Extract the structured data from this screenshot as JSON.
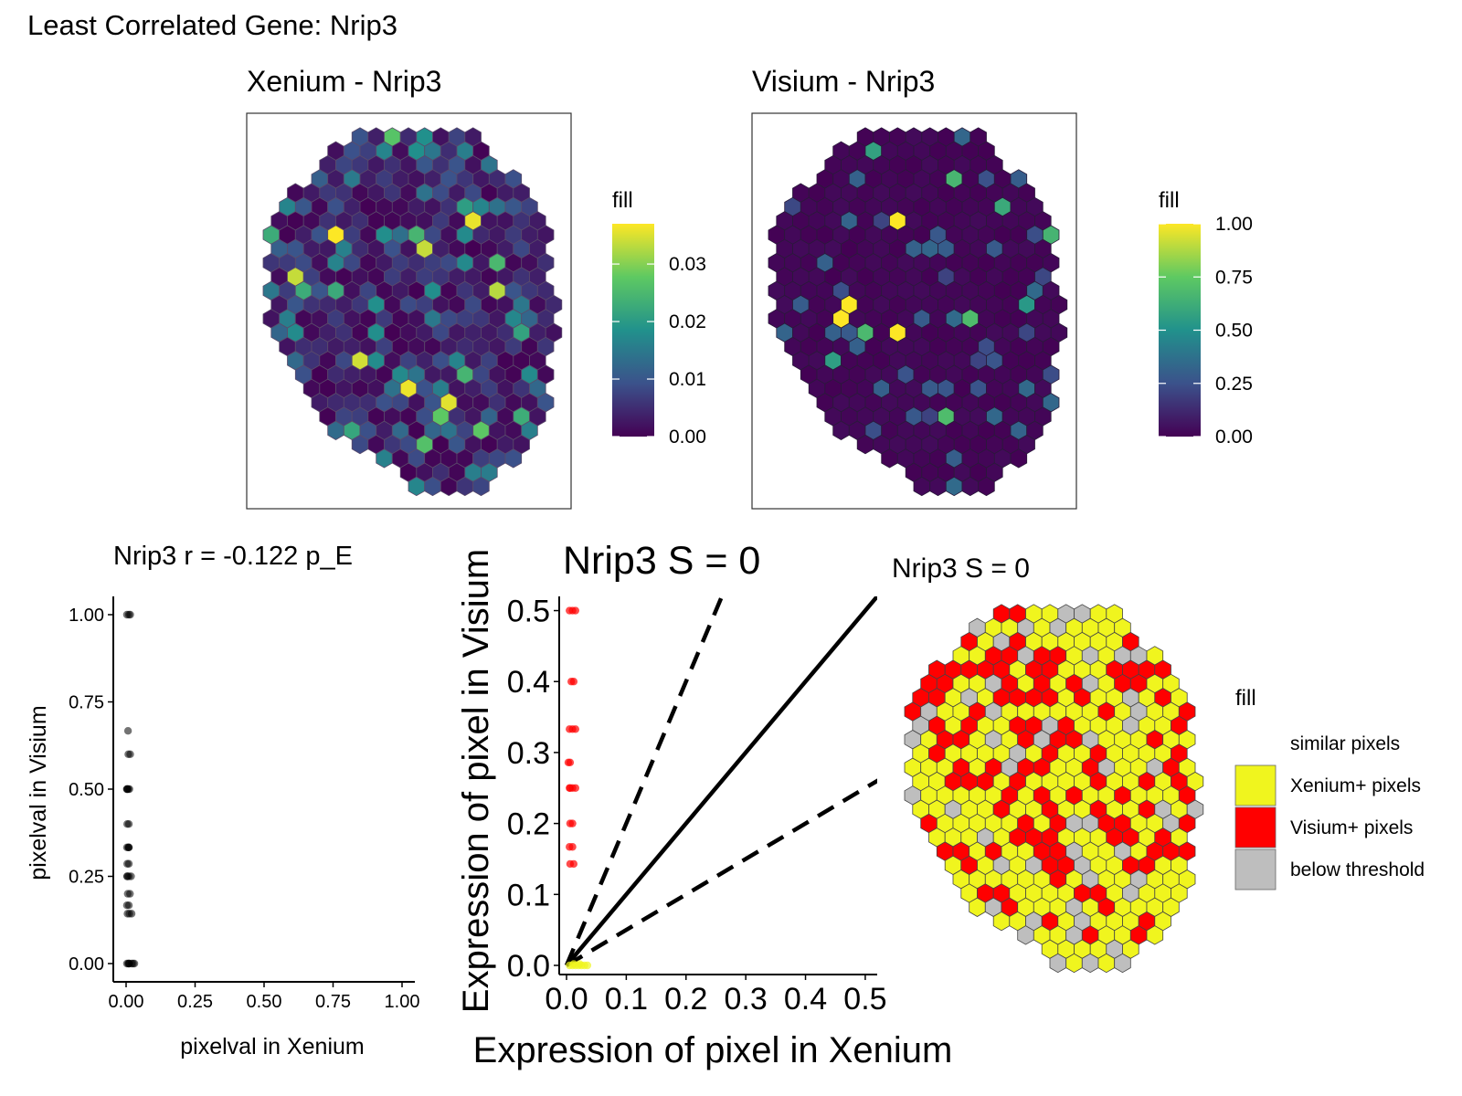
{
  "title": "Least Correlated Gene: Nrip3",
  "panels": {
    "xenium": {
      "title": "Xenium - Nrip3",
      "legend_title": "fill",
      "legend_ticks": [
        "0.00",
        "0.01",
        "0.02",
        "0.03"
      ],
      "legend_values": [
        0,
        0.01,
        0.02,
        0.03
      ],
      "legend_range": [
        0,
        0.037
      ]
    },
    "visium": {
      "title": "Visium - Nrip3",
      "legend_title": "fill",
      "legend_ticks": [
        "0.00",
        "0.25",
        "0.50",
        "0.75",
        "1.00"
      ],
      "legend_values": [
        0,
        0.25,
        0.5,
        0.75,
        1.0
      ],
      "legend_range": [
        0,
        1.0
      ]
    },
    "threshold": {
      "title": "Nrip3 S = 0",
      "legend_title": "fill",
      "legend_items": [
        {
          "label": "similar pixels",
          "color": "#ffffff"
        },
        {
          "label": "Xenium+ pixels",
          "color": "#f0f51e"
        },
        {
          "label": "Visium+ pixels",
          "color": "#ff0000"
        },
        {
          "label": "below threshold",
          "color": "#bebebe"
        }
      ]
    }
  },
  "chart_data": [
    {
      "type": "scatter",
      "title": "Nrip3  r =  -0.122  p_E",
      "xlabel": "pixelval in Xenium",
      "ylabel": "pixelval in Visium",
      "xlim": [
        0,
        1
      ],
      "ylim": [
        0,
        1
      ],
      "xticks": [
        "0.00",
        "0.25",
        "0.50",
        "0.75",
        "1.00"
      ],
      "yticks": [
        "0.00",
        "0.25",
        "0.50",
        "0.75",
        "1.00"
      ],
      "x": [
        0.003,
        0.008,
        0.01,
        0.012,
        0.02,
        0.025,
        0.03,
        0.005,
        0.012,
        0.003,
        0.01,
        0.02,
        0.006,
        0.014,
        0.004,
        0.01,
        0.018,
        0.004,
        0.01,
        0.003,
        0.008,
        0.01,
        0.004,
        0.01,
        0.005,
        0.012,
        0.003,
        0.008,
        0.015,
        0.007,
        0.003,
        0.01,
        0.004,
        0.01,
        0.003,
        0.008,
        0.015
      ],
      "y": [
        0,
        0,
        0,
        0,
        0,
        0,
        0,
        0.143,
        0.143,
        0.167,
        0.167,
        0.143,
        0.2,
        0.2,
        0.25,
        0.25,
        0.25,
        0.286,
        0.286,
        0.333,
        0.333,
        0.333,
        0.4,
        0.4,
        0.5,
        0.5,
        0.5,
        0.6,
        0.6,
        0.667,
        1.0,
        1.0,
        0.25,
        0.333,
        0.5,
        0.5,
        1.0
      ]
    },
    {
      "type": "scatter",
      "title": "Nrip3  S =  0",
      "xlabel": "Expression of pixel in Xenium",
      "ylabel": "Expression of pixel in Visium",
      "xlim": [
        0,
        0.52
      ],
      "ylim": [
        0,
        0.52
      ],
      "xticks": [
        "0.0",
        "0.1",
        "0.2",
        "0.3",
        "0.4",
        "0.5"
      ],
      "yticks": [
        "0.0",
        "0.1",
        "0.2",
        "0.3",
        "0.4",
        "0.5"
      ],
      "lines": [
        {
          "slope": 1,
          "style": "solid"
        },
        {
          "slope": 2,
          "style": "dashed"
        },
        {
          "slope": 0.5,
          "style": "dashed"
        }
      ],
      "series": [
        {
          "color": "#ff0000",
          "x": [
            0.005,
            0.01,
            0.015,
            0.008,
            0.012,
            0.005,
            0.01,
            0.015,
            0.003,
            0.006,
            0.005,
            0.01,
            0.015,
            0.006,
            0.01,
            0.005,
            0.01,
            0.006,
            0.012,
            0.006
          ],
          "y": [
            0.5,
            0.5,
            0.5,
            0.4,
            0.4,
            0.333,
            0.333,
            0.333,
            0.286,
            0.286,
            0.25,
            0.25,
            0.25,
            0.2,
            0.2,
            0.167,
            0.167,
            0.143,
            0.143,
            0.25
          ]
        },
        {
          "color": "#f0f51e",
          "x": [
            0.005,
            0.01,
            0.015,
            0.02,
            0.025,
            0.03,
            0.035,
            0.012,
            0.022
          ],
          "y": [
            0,
            0,
            0,
            0,
            0,
            0,
            0,
            0.002,
            0.002
          ]
        }
      ]
    }
  ]
}
